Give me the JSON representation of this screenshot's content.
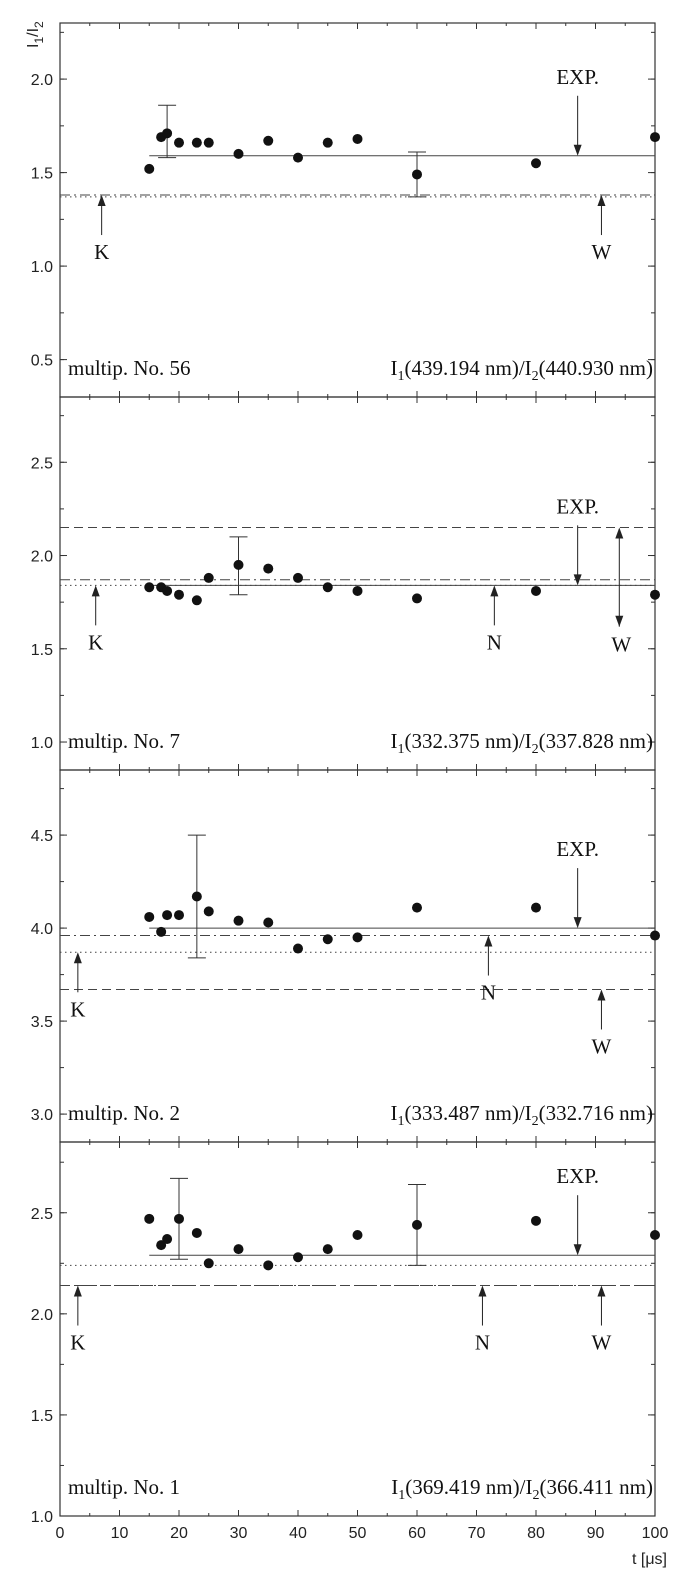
{
  "figure": {
    "ylabel_main": "I",
    "ylabel_sub1": "1",
    "ylabel_sep": "/I",
    "ylabel_sub2": "2",
    "xlabel": "t  [μs]"
  },
  "chart_data": [
    {
      "type": "scatter",
      "multiplet": "multip. No. 56",
      "ratio": {
        "i1": "I",
        "s1": "1",
        "w1": "(439.194 nm)/I",
        "s2": "2",
        "w2": "(440.930 nm)"
      },
      "ylim": [
        0.3,
        2.3
      ],
      "yticks": [
        "0.5",
        "1.0",
        "1.5",
        "2.0"
      ],
      "points": {
        "x": [
          15,
          17,
          18,
          20,
          23,
          25,
          30,
          35,
          40,
          45,
          50,
          60,
          80,
          100
        ],
        "y": [
          1.52,
          1.69,
          1.71,
          1.66,
          1.66,
          1.66,
          1.6,
          1.67,
          1.58,
          1.66,
          1.68,
          1.49,
          1.55,
          1.69
        ]
      },
      "error_bars": [
        {
          "x": 18,
          "low": 1.58,
          "high": 1.86
        },
        {
          "x": 60,
          "low": 1.37,
          "high": 1.61
        }
      ],
      "reference_lines": [
        {
          "type": "solid",
          "value": 1.59,
          "from": 15,
          "to": 100
        },
        {
          "type": "dashdot",
          "value": 1.38,
          "from": 0,
          "to": 100
        },
        {
          "type": "dotted",
          "value": 1.37,
          "from": 0,
          "to": 100
        }
      ],
      "markers": [
        {
          "label": "EXP.",
          "x": 87,
          "direction": "down",
          "target": 1.59
        },
        {
          "label": "K",
          "x": 7,
          "direction": "up",
          "target": 1.38
        },
        {
          "label": "W",
          "x": 91,
          "direction": "up",
          "target": 1.38
        }
      ]
    },
    {
      "type": "scatter",
      "multiplet": "multip. No. 7",
      "ratio": {
        "i1": "I",
        "s1": "1",
        "w1": "(332.375 nm)/I",
        "s2": "2",
        "w2": "(337.828 nm)"
      },
      "ylim": [
        0.85,
        2.85
      ],
      "yticks": [
        "1.0",
        "1.5",
        "2.0",
        "2.5"
      ],
      "points": {
        "x": [
          15,
          17,
          18,
          20,
          23,
          25,
          30,
          35,
          40,
          45,
          50,
          60,
          80,
          100
        ],
        "y": [
          1.83,
          1.83,
          1.81,
          1.79,
          1.76,
          1.88,
          1.95,
          1.93,
          1.88,
          1.83,
          1.81,
          1.77,
          1.81,
          1.79
        ]
      },
      "error_bars": [
        {
          "x": 30,
          "low": 1.79,
          "high": 2.1
        }
      ],
      "reference_lines": [
        {
          "type": "dashed",
          "value": 2.15,
          "from": 0,
          "to": 100
        },
        {
          "type": "dashdot",
          "value": 1.87,
          "from": 0,
          "to": 100
        },
        {
          "type": "solid",
          "value": 1.84,
          "from": 15,
          "to": 100
        },
        {
          "type": "dotted",
          "value": 1.84,
          "from": 0,
          "to": 100
        }
      ],
      "markers": [
        {
          "label": "EXP.",
          "x": 87,
          "direction": "down",
          "target": 1.84
        },
        {
          "label": "K",
          "x": 6,
          "direction": "up",
          "target": 1.84
        },
        {
          "label": "N",
          "x": 73,
          "direction": "up",
          "target": 1.84
        },
        {
          "label": "W",
          "x": 94,
          "direction": "both",
          "target": 2.15
        }
      ]
    },
    {
      "type": "scatter",
      "multiplet": "multip. No. 2",
      "ratio": {
        "i1": "I",
        "s1": "1",
        "w1": "(333.487 nm)/I",
        "s2": "2",
        "w2": "(332.716 nm)"
      },
      "ylim": [
        2.85,
        4.85
      ],
      "yticks": [
        "3.0",
        "3.5",
        "4.0",
        "4.5"
      ],
      "points": {
        "x": [
          15,
          17,
          18,
          20,
          23,
          25,
          30,
          35,
          40,
          45,
          50,
          60,
          80,
          100
        ],
        "y": [
          4.06,
          3.98,
          4.07,
          4.07,
          4.17,
          4.09,
          4.04,
          4.03,
          3.89,
          3.94,
          3.95,
          4.11,
          4.11,
          3.96
        ]
      },
      "error_bars": [
        {
          "x": 23,
          "low": 3.84,
          "high": 4.5
        }
      ],
      "reference_lines": [
        {
          "type": "solid",
          "value": 4.0,
          "from": 15,
          "to": 100
        },
        {
          "type": "dashdot",
          "value": 3.96,
          "from": 0,
          "to": 100
        },
        {
          "type": "dotted",
          "value": 3.87,
          "from": 0,
          "to": 100
        },
        {
          "type": "dashed",
          "value": 3.67,
          "from": 0,
          "to": 100
        }
      ],
      "markers": [
        {
          "label": "EXP.",
          "x": 87,
          "direction": "down",
          "target": 4.0
        },
        {
          "label": "K",
          "x": 3,
          "direction": "up",
          "target": 3.87
        },
        {
          "label": "N",
          "x": 72,
          "direction": "up",
          "target": 3.96
        },
        {
          "label": "W",
          "x": 91,
          "direction": "up",
          "target": 3.67
        }
      ]
    },
    {
      "type": "scatter",
      "multiplet": "multip. No. 1",
      "ratio": {
        "i1": "I",
        "s1": "1",
        "w1": "(369.419 nm)/I",
        "s2": "2",
        "w2": "(366.411 nm)"
      },
      "ylim": [
        1.0,
        2.85
      ],
      "yticks": [
        "1.0",
        "1.5",
        "2.0",
        "2.5"
      ],
      "points": {
        "x": [
          15,
          17,
          18,
          20,
          23,
          25,
          30,
          35,
          40,
          45,
          50,
          60,
          80,
          100
        ],
        "y": [
          2.47,
          2.34,
          2.37,
          2.47,
          2.4,
          2.25,
          2.32,
          2.24,
          2.28,
          2.32,
          2.39,
          2.44,
          2.46,
          2.39
        ]
      },
      "error_bars": [
        {
          "x": 20,
          "low": 2.27,
          "high": 2.67
        },
        {
          "x": 60,
          "low": 2.24,
          "high": 2.64
        }
      ],
      "reference_lines": [
        {
          "type": "solid",
          "value": 2.29,
          "from": 15,
          "to": 100
        },
        {
          "type": "dotted",
          "value": 2.24,
          "from": 0,
          "to": 100
        },
        {
          "type": "dashdot",
          "value": 2.14,
          "from": 0,
          "to": 100
        },
        {
          "type": "dashed",
          "value": 2.14,
          "from": 0,
          "to": 100
        }
      ],
      "markers": [
        {
          "label": "EXP.",
          "x": 87,
          "direction": "down",
          "target": 2.29
        },
        {
          "label": "K",
          "x": 3,
          "direction": "up",
          "target": 2.14
        },
        {
          "label": "N",
          "x": 71,
          "direction": "up",
          "target": 2.14
        },
        {
          "label": "W",
          "x": 91,
          "direction": "up",
          "target": 2.14
        }
      ]
    }
  ],
  "x_axis": {
    "range": [
      0,
      100
    ],
    "ticks": [
      "0",
      "10",
      "20",
      "30",
      "40",
      "50",
      "60",
      "70",
      "80",
      "90",
      "100"
    ]
  }
}
